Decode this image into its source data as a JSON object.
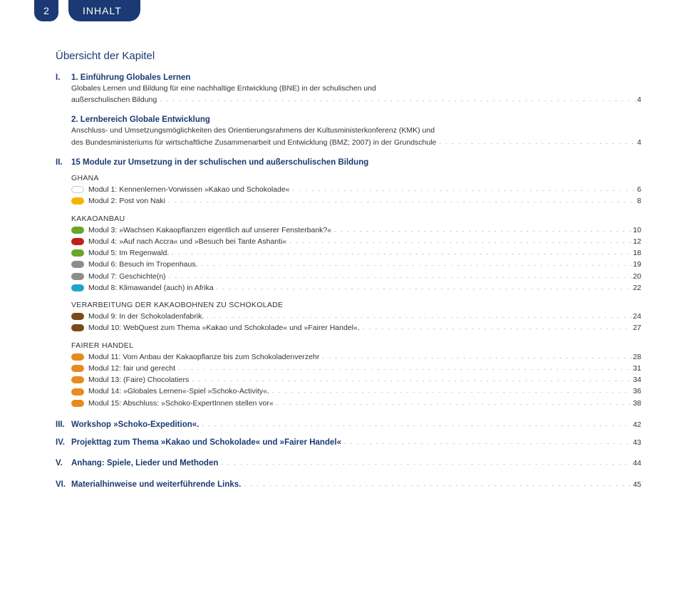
{
  "header": {
    "page_number": "2",
    "title": "INHALT"
  },
  "overview_title": "Übersicht der Kapitel",
  "colors": {
    "brand": "#1b3a73",
    "text": "#333333",
    "dots": "#888888",
    "bullet_white": "#ffffff",
    "bullet_white_border": "#c9c9c9",
    "bullet_yellow": "#f5b400",
    "bullet_green": "#6aa52a",
    "bullet_red": "#c11e1e",
    "bullet_grey": "#8d8d8d",
    "bullet_cyan": "#1ea5c9",
    "bullet_brown": "#7a4a17",
    "bullet_orange": "#e98a1e"
  },
  "sections": {
    "s1": {
      "roman": "I.",
      "num": "1.",
      "title": "Einführung Globales Lernen",
      "desc_prefix": "Globales Lernen und Bildung für eine nachhaltige Entwicklung (BNE) in der schulischen und",
      "desc_line2": "außerschulischen Bildung",
      "page": "4"
    },
    "s2": {
      "num": "2.",
      "title": "Lernbereich Globale Entwicklung",
      "desc_l1": "Anschluss- und Umsetzungsmöglichkeiten des Orientierungsrahmens der Kultusministerkonferenz (KMK) und",
      "desc_l2_prefix": "des Bundesministeriums für wirtschaftliche Zusammenarbeit und Entwicklung (BMZ; 2007) in der Grundschule",
      "page": "4"
    },
    "s3": {
      "roman": "II.",
      "title": "15 Module zur Umsetzung in der schulischen und außerschulischen Bildung"
    }
  },
  "groups": [
    {
      "title": "GHANA",
      "items": [
        {
          "bullet": "white",
          "label": "Modul 1: Kennenlernen-Vorwissen »Kakao und Schokolade«",
          "page": "6"
        },
        {
          "bullet": "yellow",
          "label": "Modul 2: Post von Naki",
          "page": "8"
        }
      ]
    },
    {
      "title": "KAKAOANBAU",
      "items": [
        {
          "bullet": "green",
          "label": "Modul 3: »Wachsen Kakaopflanzen eigentlich auf unserer Fensterbank?«",
          "page": "10"
        },
        {
          "bullet": "red",
          "label": "Modul 4: »Auf nach Accra« und »Besuch bei Tante Ashanti«",
          "page": "12"
        },
        {
          "bullet": "green",
          "label": "Modul 5: Im Regenwald.",
          "page": "18"
        },
        {
          "bullet": "grey",
          "label": "Modul 6: Besuch im Tropenhaus.",
          "page": "19"
        },
        {
          "bullet": "grey",
          "label": "Modul 7: Geschichte(n)",
          "page": "20"
        },
        {
          "bullet": "cyan",
          "label": "Modul 8: Klimawandel (auch) in Afrika",
          "page": "22"
        }
      ]
    },
    {
      "title": "VERARBEITUNG DER KAKAOBOHNEN ZU SCHOKOLADE",
      "items": [
        {
          "bullet": "brown",
          "label": "Modul 9: In der Schokoladenfabrik.",
          "page": "24"
        },
        {
          "bullet": "brown",
          "label": "Modul 10: WebQuest zum Thema »Kakao und Schokolade« und »Fairer Handel«.",
          "page": "27"
        }
      ]
    },
    {
      "title": "FAIRER HANDEL",
      "items": [
        {
          "bullet": "orange",
          "label": "Modul 11: Vom Anbau der Kakaopflanze bis zum Schokoladenverzehr",
          "page": "28"
        },
        {
          "bullet": "orange",
          "label": "Modul 12: fair und gerecht",
          "page": "31"
        },
        {
          "bullet": "orange",
          "label": "Modul 13: (Faire) Chocolatiers",
          "page": "34"
        },
        {
          "bullet": "orange",
          "label": "Modul 14: »Globales Lernen«-Spiel »Schoko-Activity«.",
          "page": "36"
        },
        {
          "bullet": "orange",
          "label": "Modul 15: Abschluss: »Schoko-ExpertInnen stellen vor«",
          "page": "38"
        }
      ]
    }
  ],
  "bottom": [
    {
      "roman": "III.",
      "title": "Workshop »Schoko-Expedition«.",
      "page": "42"
    },
    {
      "roman": "IV.",
      "title": "Projekttag zum Thema »Kakao und Schokolade« und »Fairer Handel«",
      "page": "43"
    },
    {
      "roman": "V.",
      "title": "Anhang: Spiele, Lieder und Methoden",
      "page": "44",
      "gap": true
    },
    {
      "roman": "VI.",
      "title": "Materialhinweise und weiterführende Links.",
      "page": "45",
      "gap": true
    }
  ]
}
